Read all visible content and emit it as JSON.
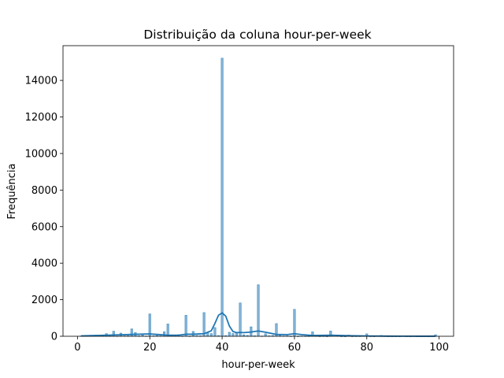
{
  "chart_data": {
    "type": "bar",
    "title": "Distribuição da coluna hour-per-week",
    "xlabel": "hour-per-week",
    "ylabel": "Frequência",
    "xlim": [
      -4,
      104
    ],
    "ylim": [
      0,
      15900
    ],
    "xticks": [
      0,
      20,
      40,
      60,
      80,
      100
    ],
    "yticks": [
      0,
      2000,
      4000,
      6000,
      8000,
      10000,
      12000,
      14000
    ],
    "bar_color": "#1f77b4",
    "kde_color": "#1f77b4",
    "grid": false,
    "legend": "none",
    "series": [
      {
        "kind": "histogram",
        "x": [
          1,
          2,
          3,
          4,
          5,
          6,
          7,
          8,
          9,
          10,
          11,
          12,
          13,
          14,
          15,
          16,
          17,
          18,
          19,
          20,
          21,
          22,
          23,
          24,
          25,
          26,
          27,
          28,
          29,
          30,
          31,
          32,
          33,
          34,
          35,
          36,
          37,
          38,
          39,
          40,
          41,
          42,
          43,
          44,
          45,
          46,
          47,
          48,
          49,
          50,
          51,
          52,
          53,
          54,
          55,
          56,
          57,
          58,
          59,
          60,
          61,
          62,
          63,
          64,
          65,
          66,
          67,
          68,
          69,
          70,
          72,
          73,
          74,
          75,
          76,
          77,
          78,
          80,
          81,
          82,
          84,
          85,
          86,
          87,
          88,
          89,
          90,
          91,
          92,
          94,
          95,
          96,
          97,
          98,
          99
        ],
        "values": [
          20,
          32,
          39,
          54,
          60,
          46,
          26,
          145,
          18,
          278,
          11,
          173,
          23,
          34,
          404,
          205,
          29,
          75,
          14,
          1224,
          24,
          44,
          21,
          252,
          674,
          30,
          30,
          86,
          7,
          1149,
          5,
          266,
          39,
          28,
          1297,
          220,
          149,
          476,
          38,
          15217,
          36,
          219,
          151,
          212,
          1824,
          82,
          49,
          517,
          29,
          2819,
          13,
          138,
          25,
          41,
          694,
          97,
          17,
          28,
          5,
          1475,
          2,
          14,
          10,
          14,
          244,
          17,
          4,
          12,
          1,
          291,
          71,
          3,
          1,
          66,
          3,
          6,
          8,
          133,
          3,
          1,
          45,
          13,
          2,
          2,
          2,
          2,
          29,
          3,
          3,
          1,
          2,
          5,
          2,
          14,
          85
        ]
      },
      {
        "kind": "kde",
        "x": [
          1,
          5,
          10,
          15,
          18,
          20,
          22,
          25,
          28,
          30,
          32,
          35,
          37,
          38,
          39,
          40,
          41,
          42,
          43,
          44,
          45,
          46,
          48,
          50,
          52,
          55,
          58,
          60,
          62,
          65,
          70,
          75,
          80,
          85,
          90,
          95,
          99
        ],
        "values": [
          20,
          40,
          70,
          100,
          120,
          130,
          100,
          60,
          60,
          110,
          110,
          140,
          300,
          700,
          1150,
          1280,
          1100,
          560,
          260,
          200,
          210,
          200,
          230,
          290,
          220,
          100,
          90,
          140,
          90,
          40,
          60,
          30,
          15,
          8,
          5,
          3,
          2
        ]
      }
    ]
  }
}
